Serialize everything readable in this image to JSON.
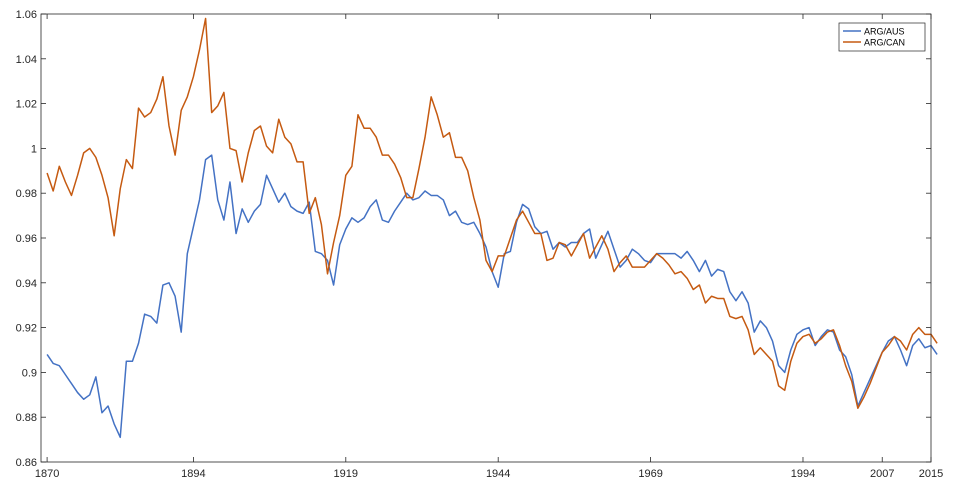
{
  "chart_data": {
    "type": "line",
    "title": "",
    "xlabel": "",
    "ylabel": "",
    "xlim": [
      1869,
      2015
    ],
    "ylim": [
      0.86,
      1.06
    ],
    "x_ticks": [
      "1870",
      "1894",
      "1919",
      "1944",
      "1969",
      "1994",
      "2007",
      "2015"
    ],
    "y_ticks": [
      "0.86",
      "0.88",
      "0.9",
      "0.92",
      "0.94",
      "0.96",
      "0.98",
      "1",
      "1.02",
      "1.04",
      "1.06"
    ],
    "grid": false,
    "legend_position": "top-right",
    "series": [
      {
        "name": "ARG/AUS",
        "color": "#4472c4",
        "points": [
          [
            1870,
            0.908
          ],
          [
            1871,
            0.904
          ],
          [
            1872,
            0.903
          ],
          [
            1873,
            0.899
          ],
          [
            1874,
            0.895
          ],
          [
            1875,
            0.891
          ],
          [
            1876,
            0.888
          ],
          [
            1877,
            0.89
          ],
          [
            1878,
            0.898
          ],
          [
            1879,
            0.882
          ],
          [
            1880,
            0.885
          ],
          [
            1881,
            0.877
          ],
          [
            1882,
            0.871
          ],
          [
            1883,
            0.905
          ],
          [
            1884,
            0.905
          ],
          [
            1885,
            0.913
          ],
          [
            1886,
            0.926
          ],
          [
            1887,
            0.925
          ],
          [
            1888,
            0.922
          ],
          [
            1889,
            0.939
          ],
          [
            1890,
            0.94
          ],
          [
            1891,
            0.934
          ],
          [
            1892,
            0.918
          ],
          [
            1893,
            0.953
          ],
          [
            1894,
            0.965
          ],
          [
            1895,
            0.977
          ],
          [
            1896,
            0.995
          ],
          [
            1897,
            0.997
          ],
          [
            1898,
            0.977
          ],
          [
            1899,
            0.968
          ],
          [
            1900,
            0.985
          ],
          [
            1901,
            0.962
          ],
          [
            1902,
            0.973
          ],
          [
            1903,
            0.967
          ],
          [
            1904,
            0.972
          ],
          [
            1905,
            0.975
          ],
          [
            1906,
            0.988
          ],
          [
            1907,
            0.982
          ],
          [
            1908,
            0.976
          ],
          [
            1909,
            0.98
          ],
          [
            1910,
            0.974
          ],
          [
            1911,
            0.972
          ],
          [
            1912,
            0.971
          ],
          [
            1913,
            0.976
          ],
          [
            1914,
            0.954
          ],
          [
            1915,
            0.953
          ],
          [
            1916,
            0.95
          ],
          [
            1917,
            0.939
          ],
          [
            1918,
            0.957
          ],
          [
            1919,
            0.964
          ],
          [
            1920,
            0.969
          ],
          [
            1921,
            0.967
          ],
          [
            1922,
            0.969
          ],
          [
            1923,
            0.974
          ],
          [
            1924,
            0.977
          ],
          [
            1925,
            0.968
          ],
          [
            1926,
            0.967
          ],
          [
            1927,
            0.972
          ],
          [
            1928,
            0.976
          ],
          [
            1929,
            0.98
          ],
          [
            1930,
            0.977
          ],
          [
            1931,
            0.978
          ],
          [
            1932,
            0.981
          ],
          [
            1933,
            0.979
          ],
          [
            1934,
            0.979
          ],
          [
            1935,
            0.977
          ],
          [
            1936,
            0.97
          ],
          [
            1937,
            0.972
          ],
          [
            1938,
            0.967
          ],
          [
            1939,
            0.966
          ],
          [
            1940,
            0.967
          ],
          [
            1941,
            0.962
          ],
          [
            1942,
            0.956
          ],
          [
            1943,
            0.945
          ],
          [
            1944,
            0.938
          ],
          [
            1945,
            0.953
          ],
          [
            1946,
            0.954
          ],
          [
            1947,
            0.967
          ],
          [
            1948,
            0.975
          ],
          [
            1949,
            0.973
          ],
          [
            1950,
            0.965
          ],
          [
            1951,
            0.962
          ],
          [
            1952,
            0.963
          ],
          [
            1953,
            0.955
          ],
          [
            1954,
            0.958
          ],
          [
            1955,
            0.956
          ],
          [
            1956,
            0.958
          ],
          [
            1957,
            0.958
          ],
          [
            1958,
            0.962
          ],
          [
            1959,
            0.964
          ],
          [
            1960,
            0.951
          ],
          [
            1961,
            0.957
          ],
          [
            1962,
            0.963
          ],
          [
            1963,
            0.955
          ],
          [
            1964,
            0.947
          ],
          [
            1965,
            0.95
          ],
          [
            1966,
            0.955
          ],
          [
            1967,
            0.953
          ],
          [
            1968,
            0.95
          ],
          [
            1969,
            0.949
          ],
          [
            1970,
            0.953
          ],
          [
            1971,
            0.953
          ],
          [
            1972,
            0.953
          ],
          [
            1973,
            0.953
          ],
          [
            1974,
            0.951
          ],
          [
            1975,
            0.954
          ],
          [
            1976,
            0.95
          ],
          [
            1977,
            0.945
          ],
          [
            1978,
            0.95
          ],
          [
            1979,
            0.943
          ],
          [
            1980,
            0.946
          ],
          [
            1981,
            0.945
          ],
          [
            1982,
            0.936
          ],
          [
            1983,
            0.932
          ],
          [
            1984,
            0.936
          ],
          [
            1985,
            0.931
          ],
          [
            1986,
            0.918
          ],
          [
            1987,
            0.923
          ],
          [
            1988,
            0.92
          ],
          [
            1989,
            0.914
          ],
          [
            1990,
            0.903
          ],
          [
            1991,
            0.9
          ],
          [
            1992,
            0.91
          ],
          [
            1993,
            0.917
          ],
          [
            1994,
            0.919
          ],
          [
            1995,
            0.92
          ],
          [
            1996,
            0.912
          ],
          [
            1997,
            0.916
          ],
          [
            1998,
            0.919
          ],
          [
            1999,
            0.918
          ],
          [
            2000,
            0.91
          ],
          [
            2001,
            0.907
          ],
          [
            2002,
            0.899
          ],
          [
            2003,
            0.885
          ],
          [
            2004,
            0.891
          ],
          [
            2005,
            0.897
          ],
          [
            2006,
            0.903
          ],
          [
            2007,
            0.909
          ],
          [
            2008,
            0.914
          ],
          [
            2009,
            0.916
          ],
          [
            2010,
            0.91
          ],
          [
            2011,
            0.903
          ],
          [
            2012,
            0.912
          ],
          [
            2013,
            0.915
          ],
          [
            2014,
            0.911
          ],
          [
            2015,
            0.912
          ],
          [
            2016,
            0.908
          ]
        ]
      },
      {
        "name": "ARG/CAN",
        "color": "#c55a11",
        "points": [
          [
            1870,
            0.989
          ],
          [
            1871,
            0.981
          ],
          [
            1872,
            0.992
          ],
          [
            1873,
            0.985
          ],
          [
            1874,
            0.979
          ],
          [
            1875,
            0.988
          ],
          [
            1876,
            0.998
          ],
          [
            1877,
            1.0
          ],
          [
            1878,
            0.996
          ],
          [
            1879,
            0.988
          ],
          [
            1880,
            0.978
          ],
          [
            1881,
            0.961
          ],
          [
            1882,
            0.982
          ],
          [
            1883,
            0.995
          ],
          [
            1884,
            0.991
          ],
          [
            1885,
            1.018
          ],
          [
            1886,
            1.014
          ],
          [
            1887,
            1.016
          ],
          [
            1888,
            1.022
          ],
          [
            1889,
            1.032
          ],
          [
            1890,
            1.01
          ],
          [
            1891,
            0.997
          ],
          [
            1892,
            1.017
          ],
          [
            1893,
            1.023
          ],
          [
            1894,
            1.032
          ],
          [
            1895,
            1.044
          ],
          [
            1896,
            1.058
          ],
          [
            1897,
            1.016
          ],
          [
            1898,
            1.019
          ],
          [
            1899,
            1.025
          ],
          [
            1900,
            1.0
          ],
          [
            1901,
            0.999
          ],
          [
            1902,
            0.985
          ],
          [
            1903,
            0.998
          ],
          [
            1904,
            1.008
          ],
          [
            1905,
            1.01
          ],
          [
            1906,
            1.001
          ],
          [
            1907,
            0.998
          ],
          [
            1908,
            1.013
          ],
          [
            1909,
            1.005
          ],
          [
            1910,
            1.002
          ],
          [
            1911,
            0.994
          ],
          [
            1912,
            0.994
          ],
          [
            1913,
            0.971
          ],
          [
            1914,
            0.978
          ],
          [
            1915,
            0.966
          ],
          [
            1916,
            0.944
          ],
          [
            1917,
            0.958
          ],
          [
            1918,
            0.97
          ],
          [
            1919,
            0.988
          ],
          [
            1920,
            0.992
          ],
          [
            1921,
            1.015
          ],
          [
            1922,
            1.009
          ],
          [
            1923,
            1.009
          ],
          [
            1924,
            1.005
          ],
          [
            1925,
            0.997
          ],
          [
            1926,
            0.997
          ],
          [
            1927,
            0.993
          ],
          [
            1928,
            0.987
          ],
          [
            1929,
            0.978
          ],
          [
            1930,
            0.978
          ],
          [
            1931,
            0.991
          ],
          [
            1932,
            1.005
          ],
          [
            1933,
            1.023
          ],
          [
            1934,
            1.015
          ],
          [
            1935,
            1.005
          ],
          [
            1936,
            1.007
          ],
          [
            1937,
            0.996
          ],
          [
            1938,
            0.996
          ],
          [
            1939,
            0.99
          ],
          [
            1940,
            0.978
          ],
          [
            1941,
            0.968
          ],
          [
            1942,
            0.95
          ],
          [
            1943,
            0.945
          ],
          [
            1944,
            0.952
          ],
          [
            1945,
            0.952
          ],
          [
            1946,
            0.96
          ],
          [
            1947,
            0.968
          ],
          [
            1948,
            0.972
          ],
          [
            1949,
            0.967
          ],
          [
            1950,
            0.962
          ],
          [
            1951,
            0.962
          ],
          [
            1952,
            0.95
          ],
          [
            1953,
            0.951
          ],
          [
            1954,
            0.958
          ],
          [
            1955,
            0.957
          ],
          [
            1956,
            0.952
          ],
          [
            1957,
            0.957
          ],
          [
            1958,
            0.962
          ],
          [
            1959,
            0.951
          ],
          [
            1960,
            0.956
          ],
          [
            1961,
            0.961
          ],
          [
            1962,
            0.955
          ],
          [
            1963,
            0.945
          ],
          [
            1964,
            0.949
          ],
          [
            1965,
            0.952
          ],
          [
            1966,
            0.947
          ],
          [
            1967,
            0.947
          ],
          [
            1968,
            0.947
          ],
          [
            1969,
            0.95
          ],
          [
            1970,
            0.953
          ],
          [
            1971,
            0.951
          ],
          [
            1972,
            0.948
          ],
          [
            1973,
            0.944
          ],
          [
            1974,
            0.945
          ],
          [
            1975,
            0.942
          ],
          [
            1976,
            0.937
          ],
          [
            1977,
            0.939
          ],
          [
            1978,
            0.931
          ],
          [
            1979,
            0.934
          ],
          [
            1980,
            0.933
          ],
          [
            1981,
            0.933
          ],
          [
            1982,
            0.925
          ],
          [
            1983,
            0.924
          ],
          [
            1984,
            0.925
          ],
          [
            1985,
            0.919
          ],
          [
            1986,
            0.908
          ],
          [
            1987,
            0.911
          ],
          [
            1988,
            0.908
          ],
          [
            1989,
            0.905
          ],
          [
            1990,
            0.894
          ],
          [
            1991,
            0.892
          ],
          [
            1992,
            0.905
          ],
          [
            1993,
            0.913
          ],
          [
            1994,
            0.916
          ],
          [
            1995,
            0.917
          ],
          [
            1996,
            0.913
          ],
          [
            1997,
            0.915
          ],
          [
            1998,
            0.918
          ],
          [
            1999,
            0.919
          ],
          [
            2000,
            0.912
          ],
          [
            2001,
            0.903
          ],
          [
            2002,
            0.896
          ],
          [
            2003,
            0.884
          ],
          [
            2004,
            0.889
          ],
          [
            2005,
            0.895
          ],
          [
            2006,
            0.902
          ],
          [
            2007,
            0.909
          ],
          [
            2008,
            0.912
          ],
          [
            2009,
            0.916
          ],
          [
            2010,
            0.914
          ],
          [
            2011,
            0.91
          ],
          [
            2012,
            0.917
          ],
          [
            2013,
            0.92
          ],
          [
            2014,
            0.917
          ],
          [
            2015,
            0.917
          ],
          [
            2016,
            0.913
          ]
        ]
      }
    ]
  }
}
